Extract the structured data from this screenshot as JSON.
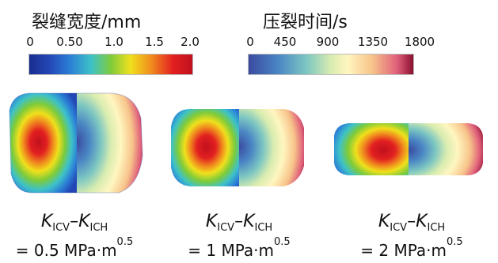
{
  "legend_left": {
    "title": "裂缝宽度/mm",
    "ticks": [
      "0",
      "0.50",
      "1.0",
      "1.5",
      "2.0"
    ]
  },
  "legend_right": {
    "title": "压裂时间/s",
    "ticks": [
      "0",
      "450",
      "900",
      "1350",
      "1800"
    ]
  },
  "panels": [
    {
      "k1": "K",
      "s1": "ICV",
      "dash": "–",
      "k2": "K",
      "s2": "ICH",
      "value": "= 0.5 MPa·m",
      "exp": "0.5"
    },
    {
      "k1": "K",
      "s1": "ICV",
      "dash": "–",
      "k2": "K",
      "s2": "ICH",
      "value": "= 1 MPa·m",
      "exp": "0.5"
    },
    {
      "k1": "K",
      "s1": "ICV",
      "dash": "–",
      "k2": "K",
      "s2": "ICH",
      "value": "= 2 MPa·m",
      "exp": "0.5"
    }
  ],
  "colors": {
    "width_scale": [
      "#1a2d8f",
      "#2b7fd6",
      "#3ec2c8",
      "#7ecb3a",
      "#f0e01c",
      "#f08a1e",
      "#e22020",
      "#c0101e"
    ],
    "time_scale": [
      "#3a4aa0",
      "#4a86c4",
      "#7cc6c2",
      "#d8ecb0",
      "#fff6c0",
      "#f7c48a",
      "#e0607a",
      "#8a1030"
    ]
  }
}
